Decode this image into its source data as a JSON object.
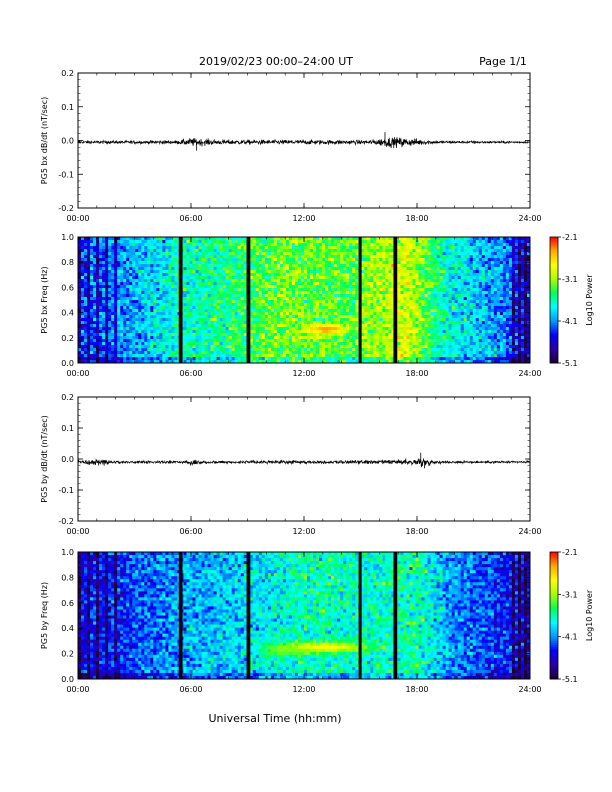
{
  "header": {
    "title": "2019/02/23  00:00–24:00 UT",
    "page_label": "Page 1/1"
  },
  "footer": {
    "xlabel": "Universal Time (hh:mm)"
  },
  "colors": {
    "trace": "#000000",
    "gap": "#000000",
    "colormap": [
      "#1a0033",
      "#2a00aa",
      "#0000ff",
      "#0099ff",
      "#00ffff",
      "#00ff55",
      "#aaff00",
      "#ffff00",
      "#ffaa00",
      "#ff0000"
    ]
  },
  "chart_data": [
    {
      "type": "line",
      "panel": "bx-timeseries",
      "ylabel": "PG5 bx dB/dt (nT/sec)",
      "xlim_hours": [
        0,
        24
      ],
      "ylim": [
        -0.2,
        0.2
      ],
      "yticks": [
        "0.2",
        "0.1",
        "0.0",
        "-0.1",
        "-0.2"
      ],
      "xticks": [
        "00:00",
        "06:00",
        "12:00",
        "18:00",
        "24:00"
      ],
      "baseline": -0.005,
      "noise_envelope": [
        {
          "x": 0,
          "amp": 0.004
        },
        {
          "x": 5.3,
          "amp": 0.005
        },
        {
          "x": 6.0,
          "amp": 0.012
        },
        {
          "x": 7.5,
          "amp": 0.007
        },
        {
          "x": 15.5,
          "amp": 0.006
        },
        {
          "x": 16.5,
          "amp": 0.015
        },
        {
          "x": 18.0,
          "amp": 0.01
        },
        {
          "x": 19.0,
          "amp": 0.004
        },
        {
          "x": 24,
          "amp": 0.003
        }
      ],
      "spikes": [
        {
          "x": 6.3,
          "y": -0.03
        },
        {
          "x": 16.3,
          "y": 0.025
        },
        {
          "x": 17.2,
          "y": -0.02
        }
      ]
    },
    {
      "type": "heatmap",
      "panel": "bx-spectrogram",
      "ylabel": "PG5 bx Freq (Hz)",
      "xlim_hours": [
        0,
        24
      ],
      "ylim": [
        0.0,
        1.0
      ],
      "yticks": [
        "1.0",
        "0.8",
        "0.6",
        "0.4",
        "0.2",
        "0.0"
      ],
      "xticks": [
        "00:00",
        "06:00",
        "12:00",
        "18:00",
        "24:00"
      ],
      "colorbar": {
        "label": "Log10 Power",
        "ticks": [
          "-2.1",
          "-3.1",
          "-4.1",
          "-5.1"
        ],
        "range": [
          -5.1,
          -2.1
        ]
      },
      "data_gaps_hours": [
        [
          5.35,
          5.55
        ],
        [
          8.95,
          9.15
        ],
        [
          14.9,
          15.05
        ],
        [
          16.75,
          16.95
        ]
      ],
      "activity_profile": [
        {
          "x": 0,
          "level": -4.3
        },
        {
          "x": 2.5,
          "level": -4.1
        },
        {
          "x": 5.0,
          "level": -3.7
        },
        {
          "x": 8.0,
          "level": -3.5
        },
        {
          "x": 11.0,
          "level": -3.2
        },
        {
          "x": 14.5,
          "level": -3.3
        },
        {
          "x": 17.5,
          "level": -2.9
        },
        {
          "x": 19.5,
          "level": -3.7
        },
        {
          "x": 22.5,
          "level": -4.1
        },
        {
          "x": 24,
          "level": -4.5
        }
      ],
      "hotspots": [
        {
          "x": 13.2,
          "f": 0.27,
          "level": -2.4,
          "dx": 1.2,
          "df": 0.04
        }
      ]
    },
    {
      "type": "line",
      "panel": "by-timeseries",
      "ylabel": "PG5 by dB/dt (nT/sec)",
      "xlim_hours": [
        0,
        24
      ],
      "ylim": [
        -0.2,
        0.2
      ],
      "yticks": [
        "0.2",
        "0.1",
        "0.0",
        "-0.1",
        "-0.2"
      ],
      "xticks": [
        "00:00",
        "06:00",
        "12:00",
        "18:00",
        "24:00"
      ],
      "baseline": -0.01,
      "noise_envelope": [
        {
          "x": 0,
          "amp": 0.005
        },
        {
          "x": 1.2,
          "amp": 0.01
        },
        {
          "x": 2.0,
          "amp": 0.004
        },
        {
          "x": 5.5,
          "amp": 0.004
        },
        {
          "x": 6.2,
          "amp": 0.01
        },
        {
          "x": 7.0,
          "amp": 0.004
        },
        {
          "x": 17.0,
          "amp": 0.006
        },
        {
          "x": 18.2,
          "amp": 0.015
        },
        {
          "x": 19.0,
          "amp": 0.004
        },
        {
          "x": 24,
          "amp": 0.003
        }
      ],
      "spikes": [
        {
          "x": 18.2,
          "y": 0.02
        },
        {
          "x": 18.4,
          "y": -0.03
        }
      ]
    },
    {
      "type": "heatmap",
      "panel": "by-spectrogram",
      "ylabel": "PG5 by Freq (Hz)",
      "xlim_hours": [
        0,
        24
      ],
      "ylim": [
        0.0,
        1.0
      ],
      "yticks": [
        "1.0",
        "0.8",
        "0.6",
        "0.4",
        "0.2",
        "0.0"
      ],
      "xticks": [
        "00:00",
        "06:00",
        "12:00",
        "18:00",
        "24:00"
      ],
      "colorbar": {
        "label": "Log10 Power",
        "ticks": [
          "-2.1",
          "-3.1",
          "-4.1",
          "-5.1"
        ],
        "range": [
          -5.1,
          -2.1
        ]
      },
      "data_gaps_hours": [
        [
          5.35,
          5.55
        ],
        [
          8.95,
          9.15
        ],
        [
          14.9,
          15.05
        ],
        [
          16.75,
          16.95
        ]
      ],
      "activity_profile": [
        {
          "x": 0,
          "level": -4.5
        },
        {
          "x": 3.0,
          "level": -4.3
        },
        {
          "x": 6.0,
          "level": -4.0
        },
        {
          "x": 9.0,
          "level": -3.9
        },
        {
          "x": 12.0,
          "level": -3.6
        },
        {
          "x": 15.0,
          "level": -3.7
        },
        {
          "x": 18.0,
          "level": -3.6
        },
        {
          "x": 20.0,
          "level": -4.1
        },
        {
          "x": 22.0,
          "level": -4.3
        },
        {
          "x": 24,
          "level": -4.6
        }
      ],
      "hotspots": [
        {
          "x": 13.0,
          "f": 0.25,
          "level": -2.7,
          "dx": 2.5,
          "df": 0.04
        },
        {
          "x": 11.0,
          "f": 0.22,
          "level": -3.2,
          "dx": 1.5,
          "df": 0.04
        }
      ]
    }
  ]
}
